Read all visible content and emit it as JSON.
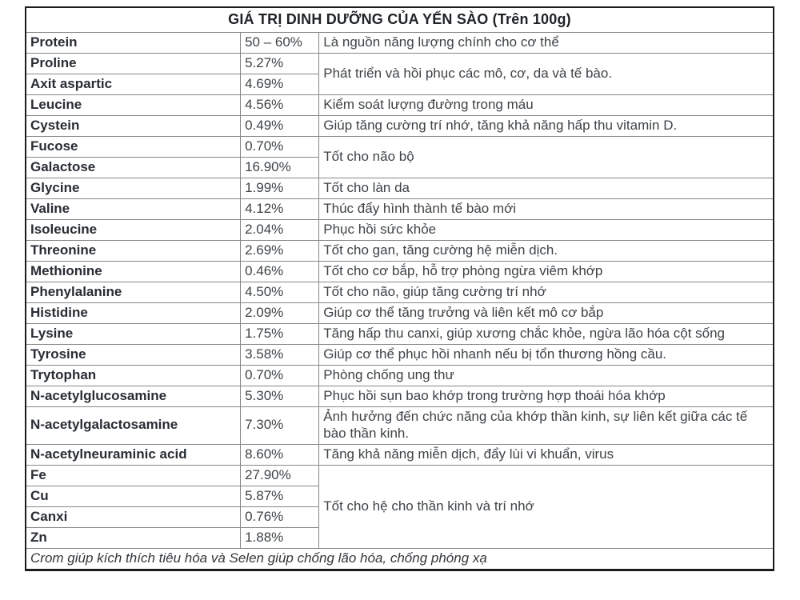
{
  "table": {
    "title": "GIÁ TRỊ DINH DƯỠNG CỦA YẾN SÀO (Trên 100g)",
    "footer_note": "Crom giúp kích thích tiêu hóa và Selen giúp chống lão hóa, chống phóng xạ",
    "rows": [
      {
        "name": "Protein",
        "value": "50 – 60%",
        "desc": "Là nguồn năng lượng chính cho cơ thể",
        "desc_rowspan": 1
      },
      {
        "name": "Proline",
        "value": "5.27%",
        "desc": "Phát triển và hồi phục các mô, cơ, da và tế bào.",
        "desc_rowspan": 2
      },
      {
        "name": "Axit aspartic",
        "value": "4.69%"
      },
      {
        "name": "Leucine",
        "value": "4.56%",
        "desc": "Kiểm soát lượng đường trong máu",
        "desc_rowspan": 1
      },
      {
        "name": "Cystein",
        "value": "0.49%",
        "desc": "Giúp tăng cường trí nhớ, tăng khả năng hấp thu vitamin D.",
        "desc_rowspan": 1
      },
      {
        "name": "Fucose",
        "value": "0.70%",
        "desc": "Tốt cho não bộ",
        "desc_rowspan": 2
      },
      {
        "name": "Galactose",
        "value": "16.90%"
      },
      {
        "name": "Glycine",
        "value": "1.99%",
        "desc": "Tốt cho làn da",
        "desc_rowspan": 1
      },
      {
        "name": "Valine",
        "value": "4.12%",
        "desc": "Thúc đẩy hình thành tế bào mới",
        "desc_rowspan": 1
      },
      {
        "name": "Isoleucine",
        "value": "2.04%",
        "desc": "Phục hồi sức khỏe",
        "desc_rowspan": 1
      },
      {
        "name": "Threonine",
        "value": "2.69%",
        "desc": "Tốt cho gan, tăng cường hệ miễn dịch.",
        "desc_rowspan": 1
      },
      {
        "name": "Methionine",
        "value": "0.46%",
        "desc": "Tốt cho cơ bắp, hỗ trợ phòng ngừa viêm khớp",
        "desc_rowspan": 1
      },
      {
        "name": "Phenylalanine",
        "value": "4.50%",
        "desc": "Tốt cho não, giúp tăng cường trí nhớ",
        "desc_rowspan": 1
      },
      {
        "name": "Histidine",
        "value": "2.09%",
        "desc": "Giúp cơ thể tăng trưởng và liên kết mô cơ bắp",
        "desc_rowspan": 1
      },
      {
        "name": "Lysine",
        "value": "1.75%",
        "desc": "Tăng hấp thu canxi, giúp xương chắc khỏe, ngừa lão hóa cột sống",
        "desc_rowspan": 1
      },
      {
        "name": "Tyrosine",
        "value": "3.58%",
        "desc": "Giúp cơ thể phục hồi nhanh nếu bị tổn thương hồng cầu.",
        "desc_rowspan": 1
      },
      {
        "name": "Trytophan",
        "value": "0.70%",
        "desc": "Phòng chống ung thư",
        "desc_rowspan": 1
      },
      {
        "name": "N-acetylglucosamine",
        "value": "5.30%",
        "desc": "Phục hồi sụn bao khớp trong trường hợp thoái hóa khớp",
        "desc_rowspan": 1
      },
      {
        "name": "N-acetylgalactosamine",
        "value": "7.30%",
        "desc": "Ảnh hưởng đến chức năng của khớp thần kinh, sự liên kết giữa các tế bào thần kinh.",
        "desc_rowspan": 1
      },
      {
        "name": "N-acetylneuraminic acid",
        "value": "8.60%",
        "desc": "Tăng khả năng miễn dịch, đẩy lùi vi khuẩn, virus",
        "desc_rowspan": 1
      },
      {
        "name": "Fe",
        "value": "27.90%",
        "desc": "Tốt cho hệ cho thần kinh và trí nhớ",
        "desc_rowspan": 4
      },
      {
        "name": "Cu",
        "value": "5.87%"
      },
      {
        "name": "Canxi",
        "value": "0.76%"
      },
      {
        "name": "Zn",
        "value": "1.88%"
      }
    ]
  }
}
